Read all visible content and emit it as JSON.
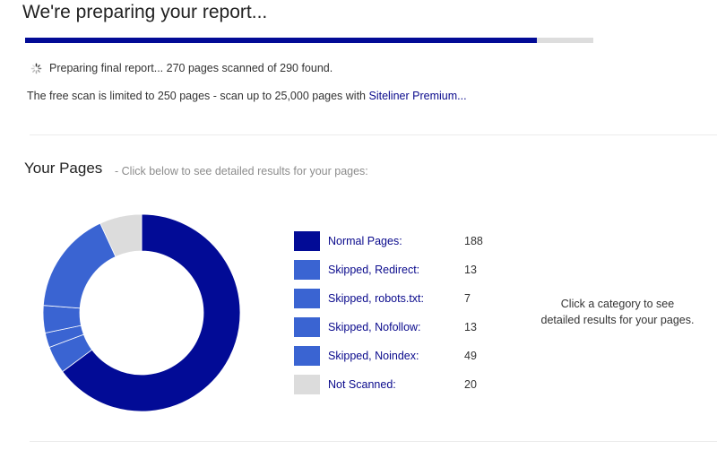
{
  "header": {
    "title": "We're preparing your report..."
  },
  "progress": {
    "fraction": 0.9,
    "fill_color": "#020b96",
    "track_color": "#dddddd"
  },
  "status": {
    "text": "Preparing final report... 270 pages scanned of 290 found."
  },
  "limit": {
    "text": "The free scan is limited to 250 pages - scan up to 25,000 pages with ",
    "link_text": "Siteliner Premium..."
  },
  "pages": {
    "title": "Your Pages",
    "subtitle": "- Click below to see detailed results for your pages:",
    "hint_line1": "Click a category to see",
    "hint_line2": "detailed results for your pages."
  },
  "chart_data": {
    "type": "pie",
    "categories": [
      "Normal Pages:",
      "Skipped, Redirect:",
      "Skipped, robots.txt:",
      "Skipped, Nofollow:",
      "Skipped, Noindex:",
      "Not Scanned:"
    ],
    "values": [
      188,
      13,
      7,
      13,
      49,
      20
    ],
    "colors": [
      "#020b96",
      "#3a64d2",
      "#3a64d2",
      "#3a64d2",
      "#3a64d2",
      "#dcdcdc"
    ],
    "legend_position": "right"
  }
}
